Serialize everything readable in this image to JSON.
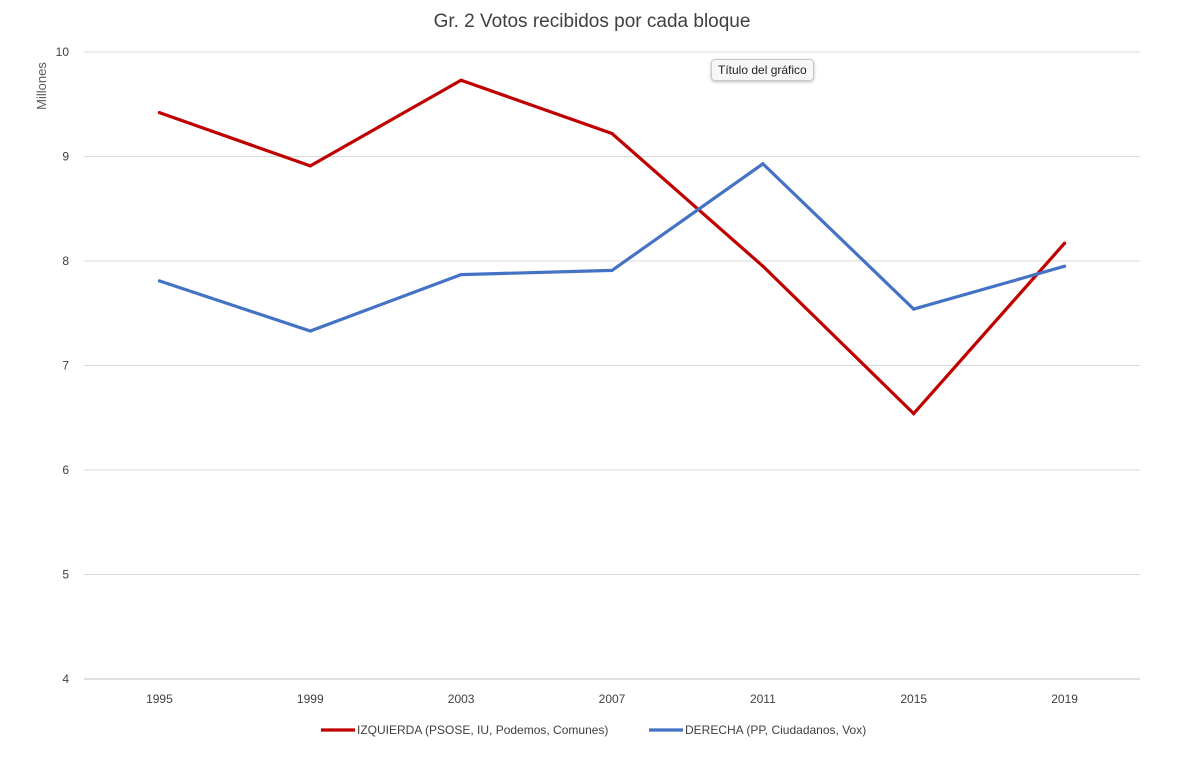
{
  "chart_data": {
    "type": "line",
    "title": "Gr. 2 Votos recibidos por cada bloque",
    "xlabel": "",
    "ylabel": "Millones",
    "categories": [
      "1995",
      "1999",
      "2003",
      "2007",
      "2011",
      "2015",
      "2019"
    ],
    "ylim": [
      4,
      10
    ],
    "yticks": [
      "4",
      "5",
      "6",
      "7",
      "8",
      "9",
      "10"
    ],
    "grid": true,
    "legend_position": "bottom",
    "series": [
      {
        "name": "IZQUIERDA (PSOSE, IU, Podemos, Comunes)",
        "color": "#c00000",
        "values": [
          9.42,
          8.91,
          9.73,
          9.22,
          7.95,
          6.54,
          8.17
        ]
      },
      {
        "name": "DERECHA (PP, Ciudadanos, Vox)",
        "color": "#4472c4",
        "values": [
          7.81,
          7.33,
          7.87,
          7.91,
          8.93,
          7.54,
          7.95
        ]
      }
    ]
  },
  "tooltip": {
    "text": "Título del gráfico"
  }
}
